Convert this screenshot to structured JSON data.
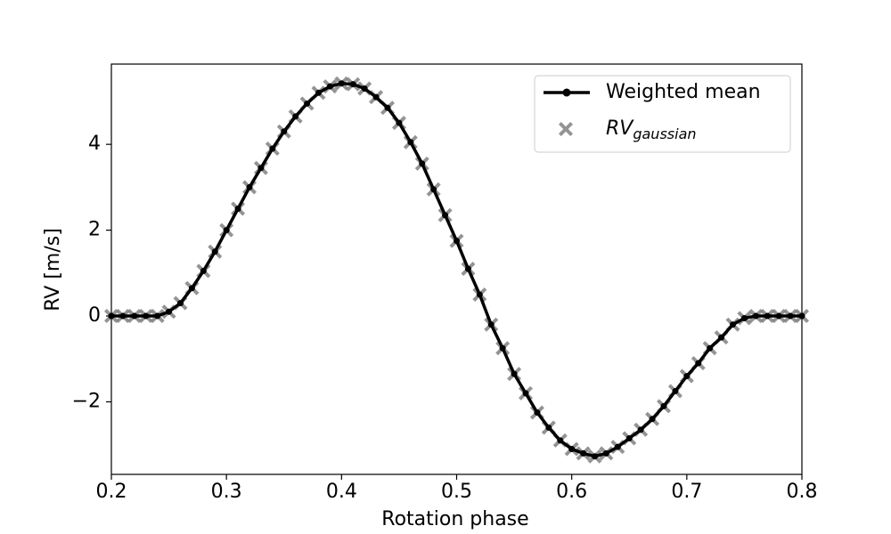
{
  "chart_data": {
    "type": "line",
    "xlabel": "Rotation phase",
    "ylabel": "RV [m/s]",
    "x": [
      0.2,
      0.21,
      0.22,
      0.23,
      0.24,
      0.25,
      0.26,
      0.27,
      0.28,
      0.29,
      0.3,
      0.31,
      0.32,
      0.33,
      0.34,
      0.35,
      0.36,
      0.37,
      0.38,
      0.39,
      0.4,
      0.41,
      0.42,
      0.43,
      0.44,
      0.45,
      0.46,
      0.47,
      0.48,
      0.49,
      0.5,
      0.51,
      0.52,
      0.53,
      0.54,
      0.55,
      0.56,
      0.57,
      0.58,
      0.59,
      0.6,
      0.61,
      0.62,
      0.63,
      0.64,
      0.65,
      0.66,
      0.67,
      0.68,
      0.69,
      0.7,
      0.71,
      0.72,
      0.73,
      0.74,
      0.75,
      0.76,
      0.77,
      0.78,
      0.79,
      0.8
    ],
    "series": [
      {
        "name": "Weighted mean",
        "color": "#000000",
        "marker": "dot",
        "values": [
          0,
          0,
          0,
          0,
          0,
          0.1,
          0.3,
          0.65,
          1.05,
          1.5,
          2.0,
          2.5,
          3.0,
          3.45,
          3.9,
          4.3,
          4.65,
          4.95,
          5.2,
          5.35,
          5.42,
          5.4,
          5.3,
          5.1,
          4.85,
          4.5,
          4.05,
          3.55,
          2.95,
          2.35,
          1.75,
          1.1,
          0.5,
          -0.2,
          -0.75,
          -1.35,
          -1.8,
          -2.25,
          -2.6,
          -2.9,
          -3.1,
          -3.2,
          -3.27,
          -3.2,
          -3.05,
          -2.85,
          -2.65,
          -2.4,
          -2.1,
          -1.75,
          -1.4,
          -1.1,
          -0.75,
          -0.5,
          -0.2,
          -0.05,
          0,
          0,
          0,
          0,
          0
        ]
      },
      {
        "name": "RV",
        "name_subscript": "gaussian",
        "color": "#808080",
        "marker": "x",
        "values": [
          0,
          0,
          0,
          0,
          0,
          0.1,
          0.3,
          0.65,
          1.05,
          1.5,
          2.0,
          2.5,
          3.0,
          3.45,
          3.9,
          4.3,
          4.65,
          4.95,
          5.2,
          5.35,
          5.42,
          5.4,
          5.3,
          5.1,
          4.85,
          4.5,
          4.05,
          3.55,
          2.95,
          2.35,
          1.75,
          1.1,
          0.5,
          -0.2,
          -0.75,
          -1.35,
          -1.8,
          -2.25,
          -2.6,
          -2.9,
          -3.1,
          -3.2,
          -3.27,
          -3.2,
          -3.05,
          -2.85,
          -2.65,
          -2.4,
          -2.1,
          -1.75,
          -1.4,
          -1.1,
          -0.75,
          -0.5,
          -0.2,
          -0.05,
          0,
          0,
          0,
          0,
          0
        ]
      }
    ],
    "xlim": [
      0.2,
      0.8
    ],
    "xticks": [
      0.2,
      0.3,
      0.4,
      0.5,
      0.6,
      0.7,
      0.8
    ],
    "ylim": [
      -3.69,
      5.87
    ],
    "yticks": [
      {
        "value": -2,
        "label": "−2"
      },
      0,
      2,
      4
    ],
    "grid": false,
    "legend": "upper right"
  }
}
